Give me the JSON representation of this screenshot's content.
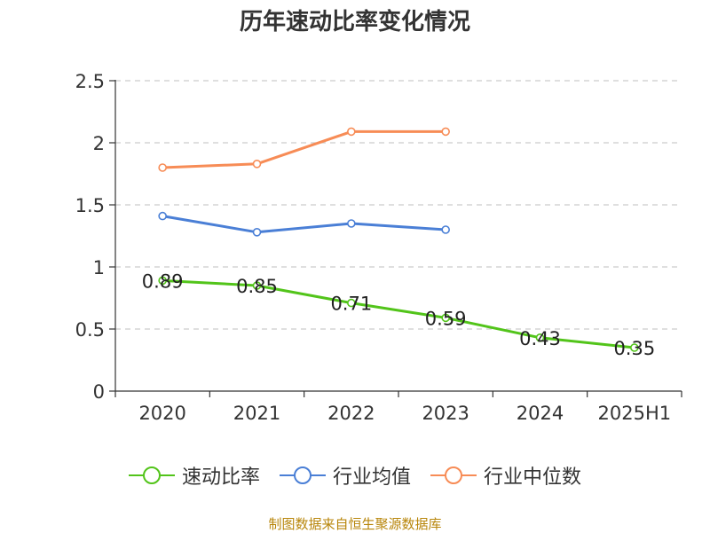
{
  "title": "历年速动比率变化情况",
  "source": "制图数据来自恒生聚源数据库",
  "chart_data": {
    "type": "line",
    "title": "历年速动比率变化情况",
    "categories": [
      "2020",
      "2021",
      "2022",
      "2023",
      "2024",
      "2025H1"
    ],
    "ylim": [
      0,
      2.5
    ],
    "yticks": [
      0,
      0.5,
      1,
      1.5,
      2,
      2.5
    ],
    "grid": true,
    "legend_position": "bottom",
    "series": [
      {
        "name": "速动比率",
        "color": "#52c41a",
        "values": [
          0.89,
          0.85,
          0.71,
          0.59,
          0.43,
          0.35
        ],
        "labels": true
      },
      {
        "name": "行业均值",
        "color": "#4a7fd6",
        "values": [
          1.41,
          1.28,
          1.35,
          1.3,
          null,
          null
        ],
        "labels": false
      },
      {
        "name": "行业中位数",
        "color": "#f78c56",
        "values": [
          1.8,
          1.83,
          2.09,
          2.09,
          null,
          null
        ],
        "labels": false
      }
    ]
  }
}
